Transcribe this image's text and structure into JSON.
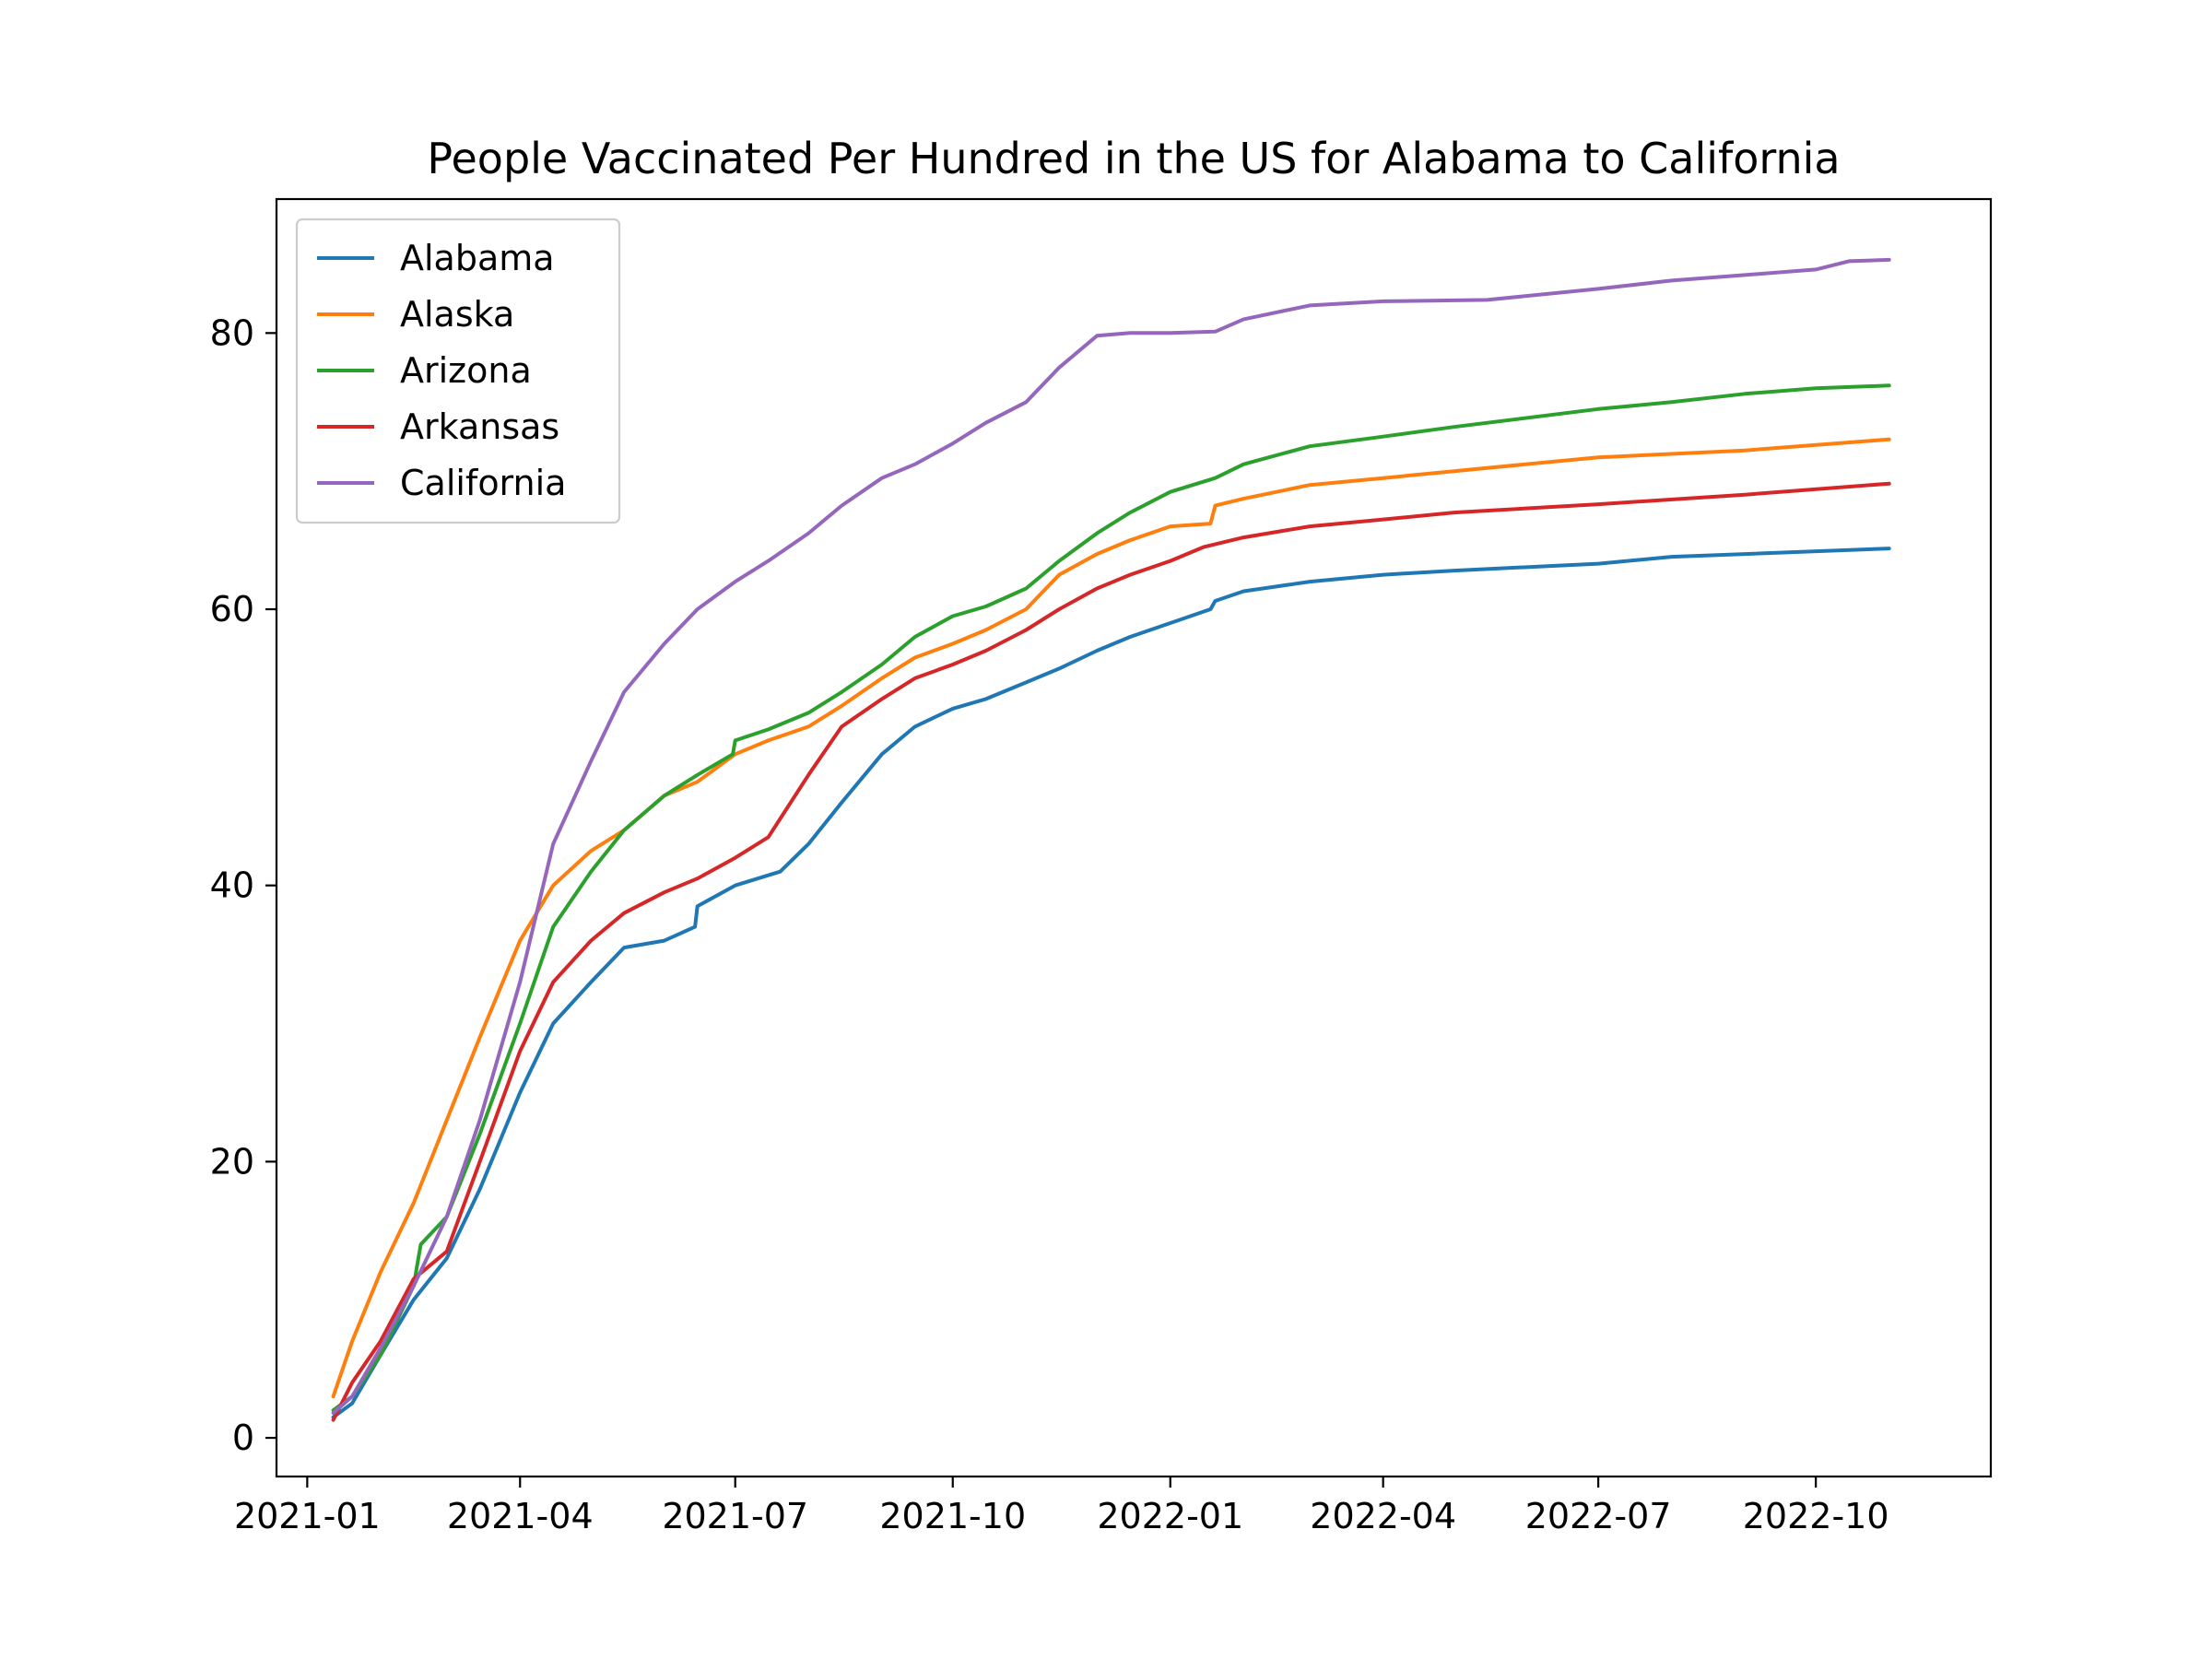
{
  "chart_data": {
    "type": "line",
    "title": "People Vaccinated Per Hundred in the US for Alabama to California",
    "xlabel": "",
    "ylabel": "",
    "x_type": "date",
    "xlim": [
      "2020-12-19",
      "2022-12-14"
    ],
    "ylim": [
      -2.8,
      89.7
    ],
    "xticks": [
      "2021-01",
      "2021-04",
      "2021-07",
      "2021-10",
      "2022-01",
      "2022-04",
      "2022-07",
      "2022-10"
    ],
    "yticks": [
      0,
      20,
      40,
      60,
      80
    ],
    "grid": false,
    "legend_position": "upper left",
    "series": [
      {
        "name": "Alabama",
        "color": "#1f77b4",
        "points": [
          [
            "2021-01-12",
            1.5
          ],
          [
            "2021-01-20",
            2.5
          ],
          [
            "2021-02-01",
            6.0
          ],
          [
            "2021-02-15",
            10.0
          ],
          [
            "2021-03-01",
            13.0
          ],
          [
            "2021-03-15",
            18.0
          ],
          [
            "2021-04-01",
            25.0
          ],
          [
            "2021-04-15",
            30.0
          ],
          [
            "2021-05-01",
            33.0
          ],
          [
            "2021-05-15",
            35.5
          ],
          [
            "2021-06-01",
            36.0
          ],
          [
            "2021-06-14",
            37.0
          ],
          [
            "2021-06-15",
            38.5
          ],
          [
            "2021-07-01",
            40.0
          ],
          [
            "2021-07-20",
            41.0
          ],
          [
            "2021-08-01",
            43.0
          ],
          [
            "2021-08-15",
            46.0
          ],
          [
            "2021-09-01",
            49.5
          ],
          [
            "2021-09-15",
            51.5
          ],
          [
            "2021-10-01",
            52.8
          ],
          [
            "2021-10-15",
            53.5
          ],
          [
            "2021-11-01",
            54.7
          ],
          [
            "2021-11-15",
            55.7
          ],
          [
            "2021-12-01",
            57.0
          ],
          [
            "2021-12-15",
            58.0
          ],
          [
            "2022-01-01",
            59.0
          ],
          [
            "2022-01-18",
            60.0
          ],
          [
            "2022-01-20",
            60.6
          ],
          [
            "2022-02-01",
            61.3
          ],
          [
            "2022-03-01",
            62.0
          ],
          [
            "2022-04-01",
            62.5
          ],
          [
            "2022-05-01",
            62.8
          ],
          [
            "2022-07-01",
            63.3
          ],
          [
            "2022-08-01",
            63.8
          ],
          [
            "2022-09-01",
            64.0
          ],
          [
            "2022-11-01",
            64.4
          ]
        ]
      },
      {
        "name": "Alaska",
        "color": "#ff7f0e",
        "points": [
          [
            "2021-01-12",
            3.0
          ],
          [
            "2021-01-20",
            7.0
          ],
          [
            "2021-02-01",
            12.0
          ],
          [
            "2021-02-15",
            17.0
          ],
          [
            "2021-03-01",
            23.0
          ],
          [
            "2021-03-15",
            29.0
          ],
          [
            "2021-04-01",
            36.0
          ],
          [
            "2021-04-15",
            40.0
          ],
          [
            "2021-05-01",
            42.5
          ],
          [
            "2021-05-15",
            44.0
          ],
          [
            "2021-06-01",
            46.5
          ],
          [
            "2021-06-15",
            47.5
          ],
          [
            "2021-07-01",
            49.5
          ],
          [
            "2021-07-15",
            50.5
          ],
          [
            "2021-08-01",
            51.5
          ],
          [
            "2021-08-15",
            53.0
          ],
          [
            "2021-09-01",
            55.0
          ],
          [
            "2021-09-15",
            56.5
          ],
          [
            "2021-10-01",
            57.5
          ],
          [
            "2021-10-15",
            58.5
          ],
          [
            "2021-11-01",
            60.0
          ],
          [
            "2021-11-15",
            62.5
          ],
          [
            "2021-12-01",
            64.0
          ],
          [
            "2021-12-15",
            65.0
          ],
          [
            "2022-01-01",
            66.0
          ],
          [
            "2022-01-18",
            66.2
          ],
          [
            "2022-01-20",
            67.5
          ],
          [
            "2022-02-01",
            68.0
          ],
          [
            "2022-03-01",
            69.0
          ],
          [
            "2022-04-01",
            69.5
          ],
          [
            "2022-05-01",
            70.0
          ],
          [
            "2022-07-01",
            71.0
          ],
          [
            "2022-09-01",
            71.5
          ],
          [
            "2022-11-01",
            72.3
          ]
        ]
      },
      {
        "name": "Arizona",
        "color": "#2ca02c",
        "points": [
          [
            "2021-01-12",
            2.0
          ],
          [
            "2021-01-20",
            3.0
          ],
          [
            "2021-02-01",
            6.0
          ],
          [
            "2021-02-15",
            11.0
          ],
          [
            "2021-02-18",
            14.0
          ],
          [
            "2021-03-01",
            16.0
          ],
          [
            "2021-03-15",
            22.0
          ],
          [
            "2021-04-01",
            30.0
          ],
          [
            "2021-04-15",
            37.0
          ],
          [
            "2021-05-01",
            41.0
          ],
          [
            "2021-05-15",
            44.0
          ],
          [
            "2021-06-01",
            46.5
          ],
          [
            "2021-06-15",
            48.0
          ],
          [
            "2021-06-30",
            49.5
          ],
          [
            "2021-07-01",
            50.5
          ],
          [
            "2021-07-15",
            51.3
          ],
          [
            "2021-08-01",
            52.5
          ],
          [
            "2021-08-15",
            54.0
          ],
          [
            "2021-09-01",
            56.0
          ],
          [
            "2021-09-15",
            58.0
          ],
          [
            "2021-10-01",
            59.5
          ],
          [
            "2021-10-15",
            60.2
          ],
          [
            "2021-11-01",
            61.5
          ],
          [
            "2021-11-15",
            63.5
          ],
          [
            "2021-12-01",
            65.5
          ],
          [
            "2021-12-15",
            67.0
          ],
          [
            "2022-01-01",
            68.5
          ],
          [
            "2022-01-20",
            69.5
          ],
          [
            "2022-02-01",
            70.5
          ],
          [
            "2022-03-01",
            71.8
          ],
          [
            "2022-04-01",
            72.5
          ],
          [
            "2022-05-01",
            73.2
          ],
          [
            "2022-07-01",
            74.5
          ],
          [
            "2022-08-01",
            75.0
          ],
          [
            "2022-09-01",
            75.6
          ],
          [
            "2022-10-01",
            76.0
          ],
          [
            "2022-11-01",
            76.2
          ]
        ]
      },
      {
        "name": "Arkansas",
        "color": "#d62728",
        "points": [
          [
            "2021-01-12",
            1.3
          ],
          [
            "2021-01-20",
            4.0
          ],
          [
            "2021-02-01",
            7.0
          ],
          [
            "2021-02-15",
            11.5
          ],
          [
            "2021-03-01",
            13.5
          ],
          [
            "2021-03-15",
            20.0
          ],
          [
            "2021-04-01",
            28.0
          ],
          [
            "2021-04-15",
            33.0
          ],
          [
            "2021-05-01",
            36.0
          ],
          [
            "2021-05-15",
            38.0
          ],
          [
            "2021-06-01",
            39.5
          ],
          [
            "2021-06-15",
            40.5
          ],
          [
            "2021-07-01",
            42.0
          ],
          [
            "2021-07-15",
            43.5
          ],
          [
            "2021-08-01",
            48.0
          ],
          [
            "2021-08-15",
            51.5
          ],
          [
            "2021-09-01",
            53.5
          ],
          [
            "2021-09-15",
            55.0
          ],
          [
            "2021-10-01",
            56.0
          ],
          [
            "2021-10-15",
            57.0
          ],
          [
            "2021-11-01",
            58.5
          ],
          [
            "2021-11-15",
            60.0
          ],
          [
            "2021-12-01",
            61.5
          ],
          [
            "2021-12-15",
            62.5
          ],
          [
            "2022-01-01",
            63.5
          ],
          [
            "2022-01-15",
            64.5
          ],
          [
            "2022-02-01",
            65.2
          ],
          [
            "2022-03-01",
            66.0
          ],
          [
            "2022-04-01",
            66.5
          ],
          [
            "2022-05-01",
            67.0
          ],
          [
            "2022-07-01",
            67.6
          ],
          [
            "2022-09-01",
            68.3
          ],
          [
            "2022-11-01",
            69.1
          ]
        ]
      },
      {
        "name": "California",
        "color": "#9467bd",
        "points": [
          [
            "2021-01-12",
            1.8
          ],
          [
            "2021-01-20",
            3.0
          ],
          [
            "2021-02-01",
            6.5
          ],
          [
            "2021-02-15",
            11.0
          ],
          [
            "2021-03-01",
            16.0
          ],
          [
            "2021-03-15",
            23.0
          ],
          [
            "2021-04-01",
            33.0
          ],
          [
            "2021-04-15",
            43.0
          ],
          [
            "2021-05-01",
            49.0
          ],
          [
            "2021-05-15",
            54.0
          ],
          [
            "2021-06-01",
            57.5
          ],
          [
            "2021-06-15",
            60.0
          ],
          [
            "2021-07-01",
            62.0
          ],
          [
            "2021-07-15",
            63.5
          ],
          [
            "2021-08-01",
            65.5
          ],
          [
            "2021-08-15",
            67.5
          ],
          [
            "2021-09-01",
            69.5
          ],
          [
            "2021-09-15",
            70.5
          ],
          [
            "2021-10-01",
            72.0
          ],
          [
            "2021-10-15",
            73.5
          ],
          [
            "2021-11-01",
            75.0
          ],
          [
            "2021-11-15",
            77.5
          ],
          [
            "2021-12-01",
            79.8
          ],
          [
            "2021-12-15",
            80.0
          ],
          [
            "2022-01-01",
            80.0
          ],
          [
            "2022-01-20",
            80.1
          ],
          [
            "2022-02-01",
            81.0
          ],
          [
            "2022-03-01",
            82.0
          ],
          [
            "2022-04-01",
            82.3
          ],
          [
            "2022-05-15",
            82.4
          ],
          [
            "2022-07-01",
            83.2
          ],
          [
            "2022-08-01",
            83.8
          ],
          [
            "2022-09-01",
            84.2
          ],
          [
            "2022-10-01",
            84.6
          ],
          [
            "2022-10-15",
            85.2
          ],
          [
            "2022-11-01",
            85.3
          ]
        ]
      }
    ]
  }
}
